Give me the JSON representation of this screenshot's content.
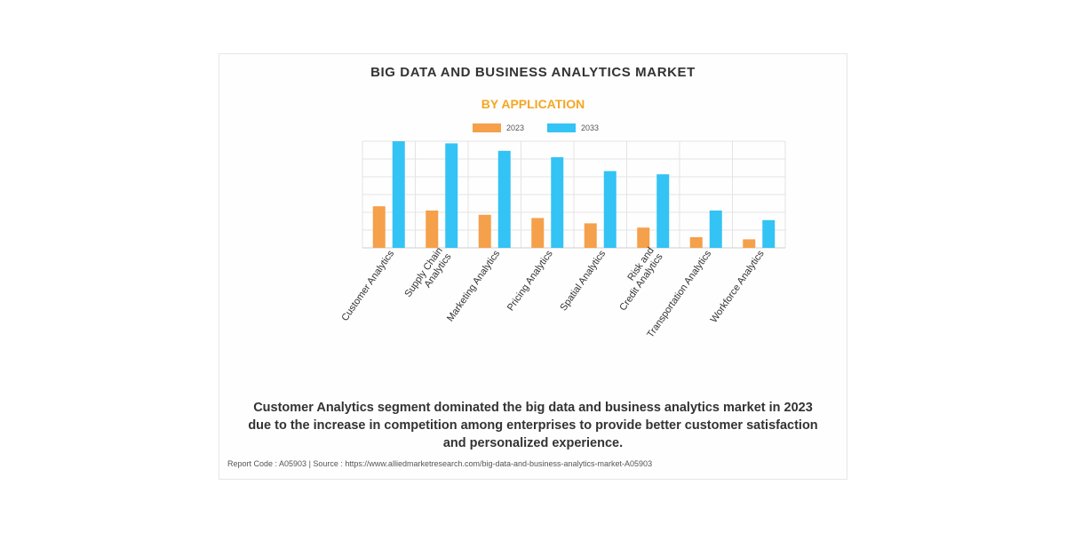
{
  "card": {
    "title": "BIG DATA AND BUSINESS ANALYTICS MARKET",
    "subtitle": "BY APPLICATION",
    "caption_lines": [
      "Customer Analytics segment dominated the big data and business analytics market in 2023",
      "due to the increase in competition among enterprises to provide better customer satisfaction",
      "and personalized experience."
    ],
    "footer": "Report Code : A05903  |  Source : https://www.alliedmarketresearch.com/big-data-and-business-analytics-market-A05903"
  },
  "colors": {
    "series_2023": "#f5a04a",
    "series_2033": "#33c3f5",
    "subtitle": "#f5a623",
    "grid": "#e4e4e4"
  },
  "chart_data": {
    "type": "bar",
    "title": "BIG DATA AND BUSINESS ANALYTICS MARKET",
    "subtitle": "BY APPLICATION",
    "categories": [
      [
        "Customer Analytics"
      ],
      [
        "Supply Chain",
        "Analytics"
      ],
      [
        "Marketing Analytics"
      ],
      [
        "Pricing Analytics"
      ],
      [
        "Spatial Analytics"
      ],
      [
        "Risk and",
        "Credit Analytics"
      ],
      [
        "Transportation Analytics"
      ],
      [
        "Workforce Analytics"
      ]
    ],
    "series": [
      {
        "name": "2023",
        "values": [
          39,
          35,
          31,
          28,
          23,
          19,
          10,
          8
        ]
      },
      {
        "name": "2033",
        "values": [
          100,
          98,
          91,
          85,
          72,
          69,
          35,
          26
        ]
      }
    ],
    "ylim": [
      0,
      100
    ],
    "y_tick_labels": false,
    "grid": true,
    "legend": "top-center"
  }
}
